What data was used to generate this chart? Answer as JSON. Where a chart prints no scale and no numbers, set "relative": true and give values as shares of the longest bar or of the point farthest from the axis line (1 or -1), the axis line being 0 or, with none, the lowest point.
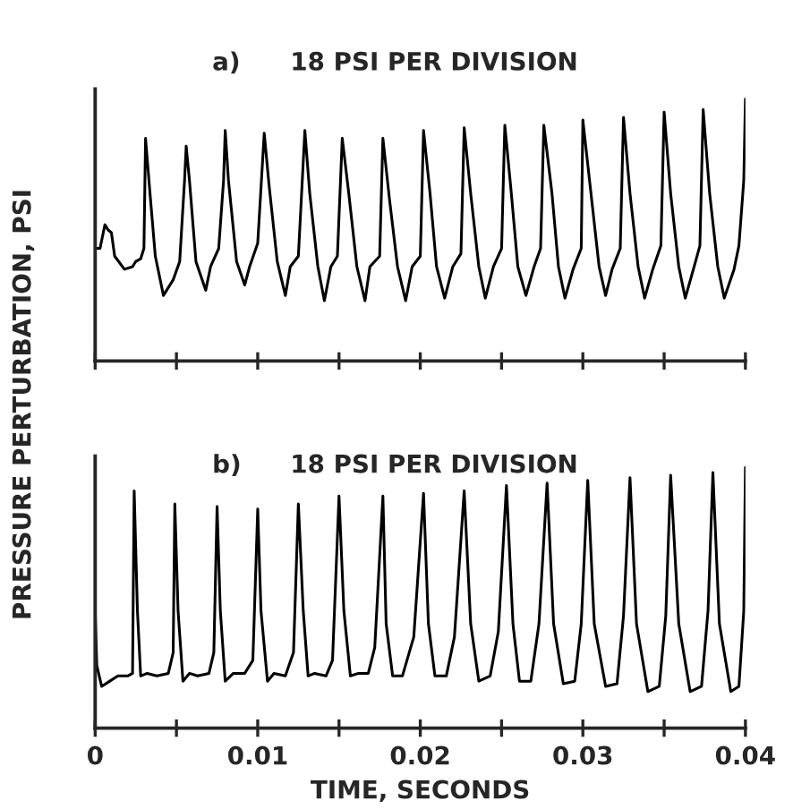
{
  "chart_data": [
    {
      "type": "line",
      "title": "a)",
      "subtitle": "18 PSI PER DIVISION",
      "ylabel": "PRESSURE PERTURBATION, PSI",
      "relative": true,
      "grid": false,
      "legend": false,
      "tick_labels": false,
      "xlim": [
        0,
        0.04
      ],
      "xticks": [
        0,
        {
          "value": 0.005,
          "label": null
        },
        0.01,
        {
          "value": 0.015,
          "label": null
        },
        0.02,
        {
          "value": 0.025,
          "label": null
        },
        0.03,
        {
          "value": 0.035,
          "label": null
        },
        0.04
      ],
      "series": [
        {
          "color": "#000000",
          "x": [
            0,
            0.0003,
            0.0006,
            0.0008,
            0.001,
            0.0012,
            0.0018,
            0.0023,
            0.0025,
            0.0028,
            0.003,
            0.0031,
            0.0034,
            0.0037,
            0.0042,
            0.0048,
            0.0052,
            0.0055,
            0.0056,
            0.0058,
            0.0062,
            0.0068,
            0.0071,
            0.0076,
            0.0079,
            0.008,
            0.0082,
            0.0087,
            0.0092,
            0.0095,
            0.01,
            0.0104,
            0.0107,
            0.0112,
            0.0117,
            0.012,
            0.0125,
            0.0129,
            0.0132,
            0.0137,
            0.0141,
            0.0145,
            0.0149,
            0.0152,
            0.0156,
            0.0161,
            0.0166,
            0.0169,
            0.0175,
            0.0177,
            0.0181,
            0.0186,
            0.0191,
            0.0195,
            0.02,
            0.0202,
            0.0206,
            0.021,
            0.0215,
            0.022,
            0.0225,
            0.0227,
            0.0231,
            0.0236,
            0.024,
            0.0245,
            0.025,
            0.0252,
            0.0256,
            0.026,
            0.0265,
            0.027,
            0.0274,
            0.0276,
            0.0281,
            0.0285,
            0.0289,
            0.0294,
            0.0299,
            0.03,
            0.0305,
            0.031,
            0.0314,
            0.0318,
            0.0323,
            0.0325,
            0.0329,
            0.0334,
            0.0338,
            0.0343,
            0.0348,
            0.035,
            0.0354,
            0.0359,
            0.0363,
            0.0368,
            0.0372,
            0.0374,
            0.0378,
            0.0383,
            0.0387,
            0.0393,
            0.0396,
            0.0399,
            0.04
          ],
          "values": [
            0.43,
            0.43,
            0.52,
            0.5,
            0.49,
            0.4,
            0.35,
            0.36,
            0.38,
            0.39,
            0.43,
            0.85,
            0.62,
            0.4,
            0.25,
            0.31,
            0.38,
            0.69,
            0.82,
            0.69,
            0.38,
            0.27,
            0.36,
            0.43,
            0.69,
            0.88,
            0.69,
            0.38,
            0.29,
            0.36,
            0.45,
            0.87,
            0.67,
            0.38,
            0.25,
            0.36,
            0.4,
            0.88,
            0.64,
            0.36,
            0.23,
            0.36,
            0.4,
            0.85,
            0.64,
            0.36,
            0.23,
            0.36,
            0.4,
            0.85,
            0.62,
            0.36,
            0.23,
            0.36,
            0.4,
            0.88,
            0.64,
            0.36,
            0.24,
            0.36,
            0.41,
            0.89,
            0.64,
            0.36,
            0.24,
            0.36,
            0.43,
            0.9,
            0.64,
            0.36,
            0.25,
            0.36,
            0.43,
            0.9,
            0.64,
            0.36,
            0.24,
            0.35,
            0.43,
            0.92,
            0.64,
            0.36,
            0.25,
            0.35,
            0.43,
            0.93,
            0.64,
            0.36,
            0.24,
            0.35,
            0.44,
            0.95,
            0.64,
            0.36,
            0.24,
            0.35,
            0.44,
            0.96,
            0.64,
            0.36,
            0.24,
            0.35,
            0.44,
            0.69,
            1.0
          ]
        }
      ]
    },
    {
      "type": "line",
      "title": "b)",
      "subtitle": "18 PSI PER DIVISION",
      "xlabel": "TIME, SECONDS",
      "relative": true,
      "grid": false,
      "legend": false,
      "tick_labels": "x",
      "xlim": [
        0,
        0.04
      ],
      "xticks": [
        0,
        {
          "value": 0.005,
          "label": null
        },
        0.01,
        {
          "value": 0.015,
          "label": null
        },
        0.02,
        {
          "value": 0.025,
          "label": null
        },
        0.03,
        {
          "value": 0.035,
          "label": null
        },
        0.04
      ],
      "series": [
        {
          "color": "#000000",
          "x": [
            0,
            0.0001,
            0.0004,
            0.0009,
            0.0014,
            0.002,
            0.0023,
            0.0024,
            0.0026,
            0.0028,
            0.0032,
            0.0038,
            0.0045,
            0.0048,
            0.0049,
            0.0051,
            0.0054,
            0.0058,
            0.0063,
            0.007,
            0.0073,
            0.0075,
            0.0077,
            0.008,
            0.0085,
            0.0092,
            0.0097,
            0.01,
            0.0102,
            0.0106,
            0.011,
            0.0117,
            0.0122,
            0.0125,
            0.0128,
            0.0131,
            0.0135,
            0.0142,
            0.0146,
            0.015,
            0.0153,
            0.0157,
            0.0162,
            0.0168,
            0.0172,
            0.0177,
            0.0179,
            0.0183,
            0.0189,
            0.0196,
            0.0202,
            0.0205,
            0.0209,
            0.0216,
            0.0221,
            0.0227,
            0.0231,
            0.0236,
            0.0243,
            0.0248,
            0.0253,
            0.0257,
            0.0261,
            0.0268,
            0.0273,
            0.0278,
            0.0282,
            0.0288,
            0.0295,
            0.0299,
            0.0303,
            0.0307,
            0.0314,
            0.0321,
            0.0325,
            0.0329,
            0.0333,
            0.034,
            0.0347,
            0.0351,
            0.0354,
            0.0359,
            0.0366,
            0.0373,
            0.0377,
            0.038,
            0.0384,
            0.0391,
            0.0396,
            0.0399,
            0.04
          ],
          "values": [
            0.45,
            0.24,
            0.16,
            0.18,
            0.2,
            0.2,
            0.21,
            0.91,
            0.45,
            0.2,
            0.21,
            0.2,
            0.21,
            0.29,
            0.86,
            0.45,
            0.18,
            0.21,
            0.2,
            0.21,
            0.29,
            0.85,
            0.45,
            0.18,
            0.21,
            0.21,
            0.26,
            0.84,
            0.45,
            0.18,
            0.21,
            0.2,
            0.29,
            0.86,
            0.45,
            0.2,
            0.21,
            0.2,
            0.26,
            0.89,
            0.45,
            0.2,
            0.21,
            0.21,
            0.31,
            0.89,
            0.4,
            0.2,
            0.2,
            0.35,
            0.9,
            0.4,
            0.2,
            0.2,
            0.35,
            0.91,
            0.4,
            0.18,
            0.2,
            0.37,
            0.93,
            0.4,
            0.18,
            0.18,
            0.4,
            0.94,
            0.4,
            0.17,
            0.18,
            0.4,
            0.95,
            0.4,
            0.16,
            0.17,
            0.43,
            0.96,
            0.4,
            0.14,
            0.16,
            0.43,
            0.97,
            0.4,
            0.14,
            0.16,
            0.45,
            0.98,
            0.4,
            0.14,
            0.16,
            0.45,
            1.0
          ]
        }
      ]
    }
  ]
}
